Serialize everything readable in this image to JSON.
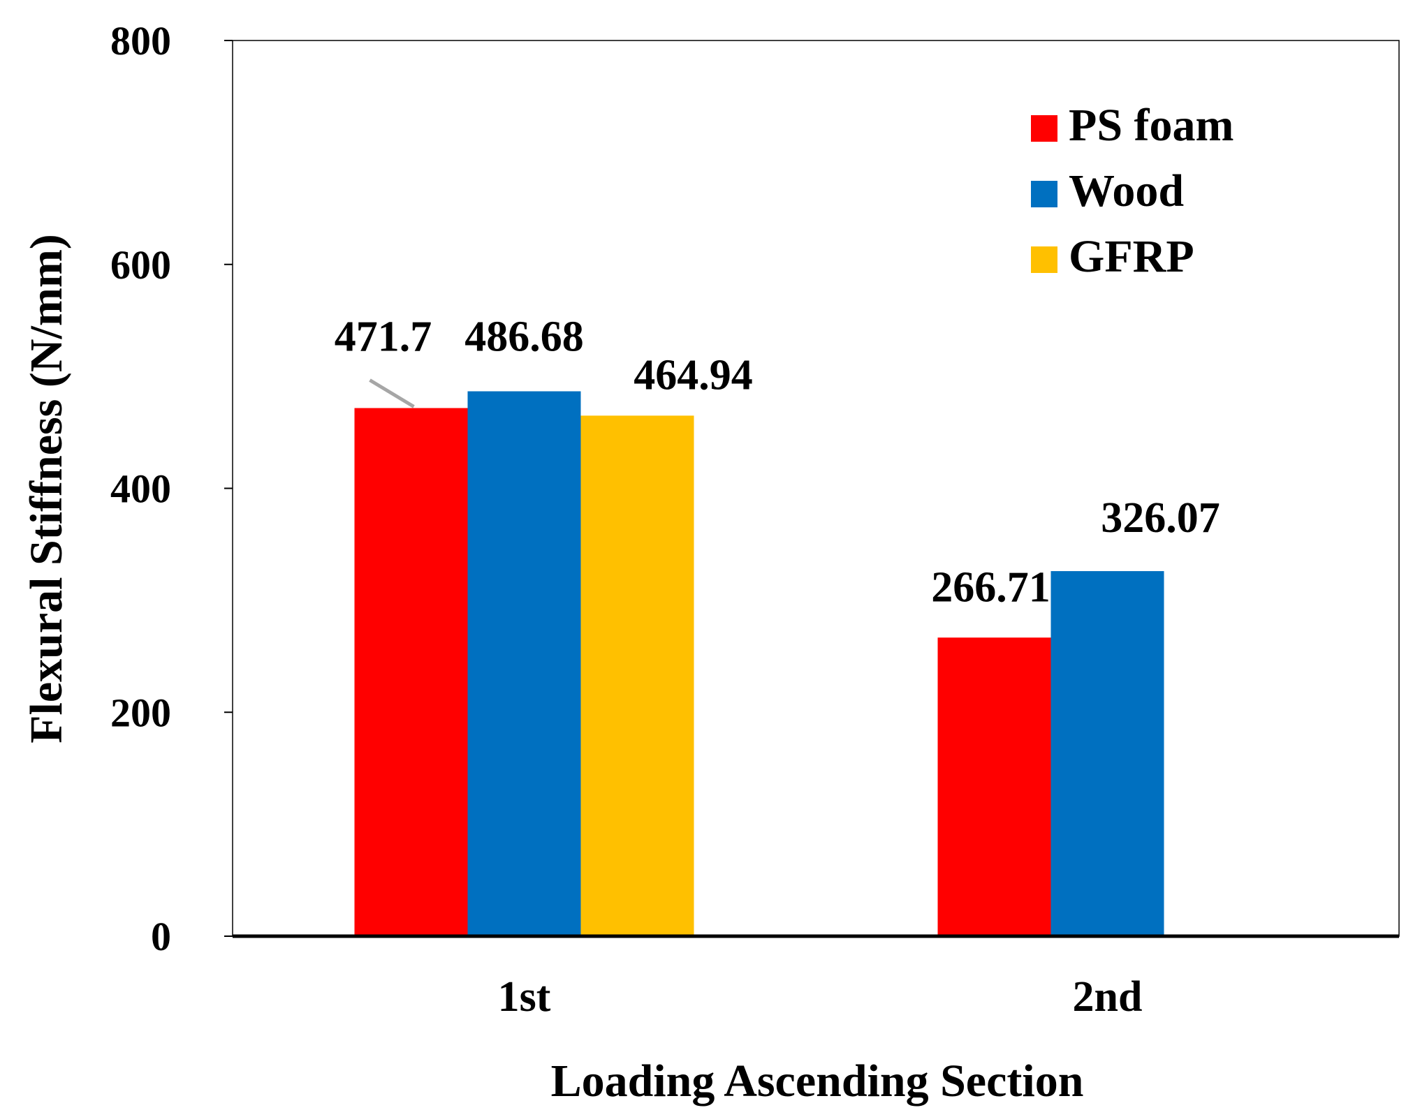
{
  "chart_data": {
    "type": "bar",
    "title": "",
    "xlabel": "Loading Ascending Section",
    "ylabel": "Flexural Stiffness (N/mm)",
    "ylim": [
      0,
      800
    ],
    "yticks": [
      "0",
      "200",
      "400",
      "600",
      "800"
    ],
    "categories": [
      "1st",
      "2nd"
    ],
    "series": [
      {
        "name": "PS foam",
        "color": "#ff0000",
        "values": [
          471.7,
          266.71
        ],
        "labels": [
          "471.7",
          "266.71"
        ]
      },
      {
        "name": "Wood",
        "color": "#0070c0",
        "values": [
          486.68,
          326.07
        ],
        "labels": [
          "486.68",
          "326.07"
        ]
      },
      {
        "name": "GFRP",
        "color": "#ffc000",
        "values": [
          464.94,
          null
        ],
        "labels": [
          "464.94",
          ""
        ]
      }
    ],
    "legend_position": "top-right",
    "grid": false
  }
}
